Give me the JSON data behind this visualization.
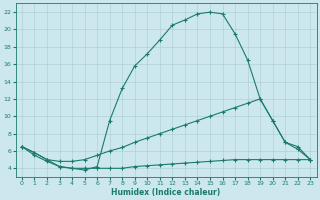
{
  "xlabel": "Humidex (Indice chaleur)",
  "bg_color": "#cce8ee",
  "grid_color": "#aacccc",
  "line_color": "#1a7a6e",
  "xlim": [
    -0.5,
    23.5
  ],
  "ylim": [
    3.0,
    23.0
  ],
  "xticks": [
    0,
    1,
    2,
    3,
    4,
    5,
    6,
    7,
    8,
    9,
    10,
    11,
    12,
    13,
    14,
    15,
    16,
    17,
    18,
    19,
    20,
    21,
    22,
    23
  ],
  "yticks": [
    4,
    6,
    8,
    10,
    12,
    14,
    16,
    18,
    20,
    22
  ],
  "curve1_x": [
    0,
    1,
    2,
    3,
    4,
    5,
    6,
    7,
    8,
    9,
    10,
    11,
    12,
    13,
    14,
    15,
    16,
    17,
    18,
    19,
    20,
    21,
    22,
    23
  ],
  "curve1_y": [
    6.5,
    5.8,
    5.0,
    4.2,
    4.0,
    3.8,
    4.2,
    9.5,
    13.2,
    15.8,
    17.2,
    18.8,
    20.5,
    21.1,
    21.8,
    22.0,
    21.8,
    19.5,
    16.5,
    12.0,
    9.5,
    7.0,
    6.2,
    5.0
  ],
  "curve2_x": [
    0,
    1,
    2,
    3,
    4,
    5,
    6,
    7,
    8,
    9,
    10,
    11,
    12,
    13,
    14,
    15,
    16,
    17,
    18,
    19,
    20,
    21,
    22,
    23
  ],
  "curve2_y": [
    6.5,
    5.8,
    5.0,
    4.8,
    4.8,
    5.0,
    5.5,
    6.0,
    6.4,
    7.0,
    7.5,
    8.0,
    8.5,
    9.0,
    9.5,
    10.0,
    10.5,
    11.0,
    11.5,
    12.0,
    9.5,
    7.0,
    6.5,
    5.0
  ],
  "curve3_x": [
    0,
    1,
    2,
    3,
    4,
    5,
    6,
    7,
    8,
    9,
    10,
    11,
    12,
    13,
    14,
    15,
    16,
    17,
    18,
    19,
    20,
    21,
    22,
    23
  ],
  "curve3_y": [
    6.5,
    5.5,
    4.8,
    4.2,
    4.0,
    4.0,
    4.0,
    4.0,
    4.0,
    4.2,
    4.3,
    4.4,
    4.5,
    4.6,
    4.7,
    4.8,
    4.9,
    5.0,
    5.0,
    5.0,
    5.0,
    5.0,
    5.0,
    5.0
  ]
}
